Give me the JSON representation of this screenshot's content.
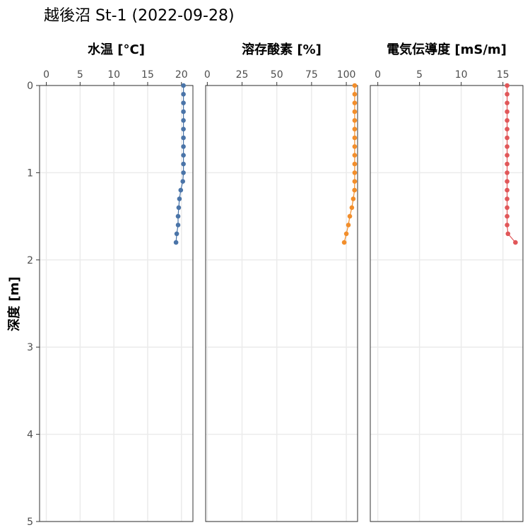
{
  "title": "越後沼 St-1 (2022-09-28)",
  "chart_data": [
    {
      "type": "line",
      "title": "水温 [°C]",
      "xlabel": "水温 [°C]",
      "ylabel": "深度 [m]",
      "xlim": [
        -1,
        21.7
      ],
      "ylim": [
        0,
        5
      ],
      "y_reversed": true,
      "x_ticks": [
        0,
        5,
        10,
        15,
        20
      ],
      "x_tick_labels": [
        "0",
        "5",
        "10",
        "15",
        "20"
      ],
      "y_ticks": [
        0,
        1,
        2,
        3,
        4,
        5
      ],
      "y_tick_labels": [
        "0",
        "1",
        "2",
        "3",
        "4",
        "5"
      ],
      "x_axis_position": "top",
      "grid": true,
      "color": "#4a74a8",
      "series": [
        {
          "values": [
            {
              "x": 20.3,
              "y": 0.0
            },
            {
              "x": 20.3,
              "y": 0.1
            },
            {
              "x": 20.3,
              "y": 0.2
            },
            {
              "x": 20.3,
              "y": 0.3
            },
            {
              "x": 20.3,
              "y": 0.4
            },
            {
              "x": 20.3,
              "y": 0.5
            },
            {
              "x": 20.3,
              "y": 0.6
            },
            {
              "x": 20.3,
              "y": 0.7
            },
            {
              "x": 20.3,
              "y": 0.8
            },
            {
              "x": 20.3,
              "y": 0.9
            },
            {
              "x": 20.3,
              "y": 1.0
            },
            {
              "x": 20.2,
              "y": 1.1
            },
            {
              "x": 19.9,
              "y": 1.2
            },
            {
              "x": 19.7,
              "y": 1.3
            },
            {
              "x": 19.6,
              "y": 1.4
            },
            {
              "x": 19.5,
              "y": 1.5
            },
            {
              "x": 19.5,
              "y": 1.6
            },
            {
              "x": 19.3,
              "y": 1.7
            },
            {
              "x": 19.2,
              "y": 1.8
            }
          ]
        }
      ]
    },
    {
      "type": "line",
      "title": "溶存酸素 [%]",
      "xlabel": "溶存酸素 [%]",
      "xlim": [
        -1.2,
        108.1
      ],
      "ylim": [
        0,
        5
      ],
      "y_reversed": true,
      "x_ticks": [
        0,
        25,
        50,
        75,
        100
      ],
      "x_tick_labels": [
        "0",
        "25",
        "50",
        "75",
        "100"
      ],
      "x_axis_position": "top",
      "grid": true,
      "color": "#f28e2b",
      "series": [
        {
          "values": [
            {
              "x": 106.0,
              "y": 0.0
            },
            {
              "x": 106.0,
              "y": 0.1
            },
            {
              "x": 106.0,
              "y": 0.2
            },
            {
              "x": 106.0,
              "y": 0.3
            },
            {
              "x": 106.0,
              "y": 0.4
            },
            {
              "x": 106.0,
              "y": 0.5
            },
            {
              "x": 106.0,
              "y": 0.6
            },
            {
              "x": 106.0,
              "y": 0.7
            },
            {
              "x": 106.0,
              "y": 0.8
            },
            {
              "x": 106.0,
              "y": 0.9
            },
            {
              "x": 106.0,
              "y": 1.0
            },
            {
              "x": 106.0,
              "y": 1.1
            },
            {
              "x": 105.9,
              "y": 1.2
            },
            {
              "x": 105.0,
              "y": 1.3
            },
            {
              "x": 104.0,
              "y": 1.4
            },
            {
              "x": 102.5,
              "y": 1.5
            },
            {
              "x": 101.5,
              "y": 1.6
            },
            {
              "x": 100.0,
              "y": 1.7
            },
            {
              "x": 98.5,
              "y": 1.8
            }
          ]
        }
      ]
    },
    {
      "type": "line",
      "title": "電気伝導度 [mS/m]",
      "xlabel": "電気伝導度 [mS/m]",
      "xlim": [
        -0.9,
        17.4
      ],
      "ylim": [
        0,
        5
      ],
      "y_reversed": true,
      "x_ticks": [
        0,
        5,
        10,
        15
      ],
      "x_tick_labels": [
        "0",
        "5",
        "10",
        "15"
      ],
      "x_axis_position": "top",
      "grid": true,
      "color": "#e15759",
      "series": [
        {
          "values": [
            {
              "x": 15.5,
              "y": 0.0
            },
            {
              "x": 15.5,
              "y": 0.1
            },
            {
              "x": 15.5,
              "y": 0.2
            },
            {
              "x": 15.5,
              "y": 0.3
            },
            {
              "x": 15.5,
              "y": 0.4
            },
            {
              "x": 15.5,
              "y": 0.5
            },
            {
              "x": 15.5,
              "y": 0.6
            },
            {
              "x": 15.5,
              "y": 0.7
            },
            {
              "x": 15.5,
              "y": 0.8
            },
            {
              "x": 15.5,
              "y": 0.9
            },
            {
              "x": 15.5,
              "y": 1.0
            },
            {
              "x": 15.5,
              "y": 1.1
            },
            {
              "x": 15.5,
              "y": 1.2
            },
            {
              "x": 15.5,
              "y": 1.3
            },
            {
              "x": 15.5,
              "y": 1.4
            },
            {
              "x": 15.5,
              "y": 1.5
            },
            {
              "x": 15.5,
              "y": 1.6
            },
            {
              "x": 15.6,
              "y": 1.7
            },
            {
              "x": 16.5,
              "y": 1.8
            }
          ]
        }
      ]
    }
  ]
}
